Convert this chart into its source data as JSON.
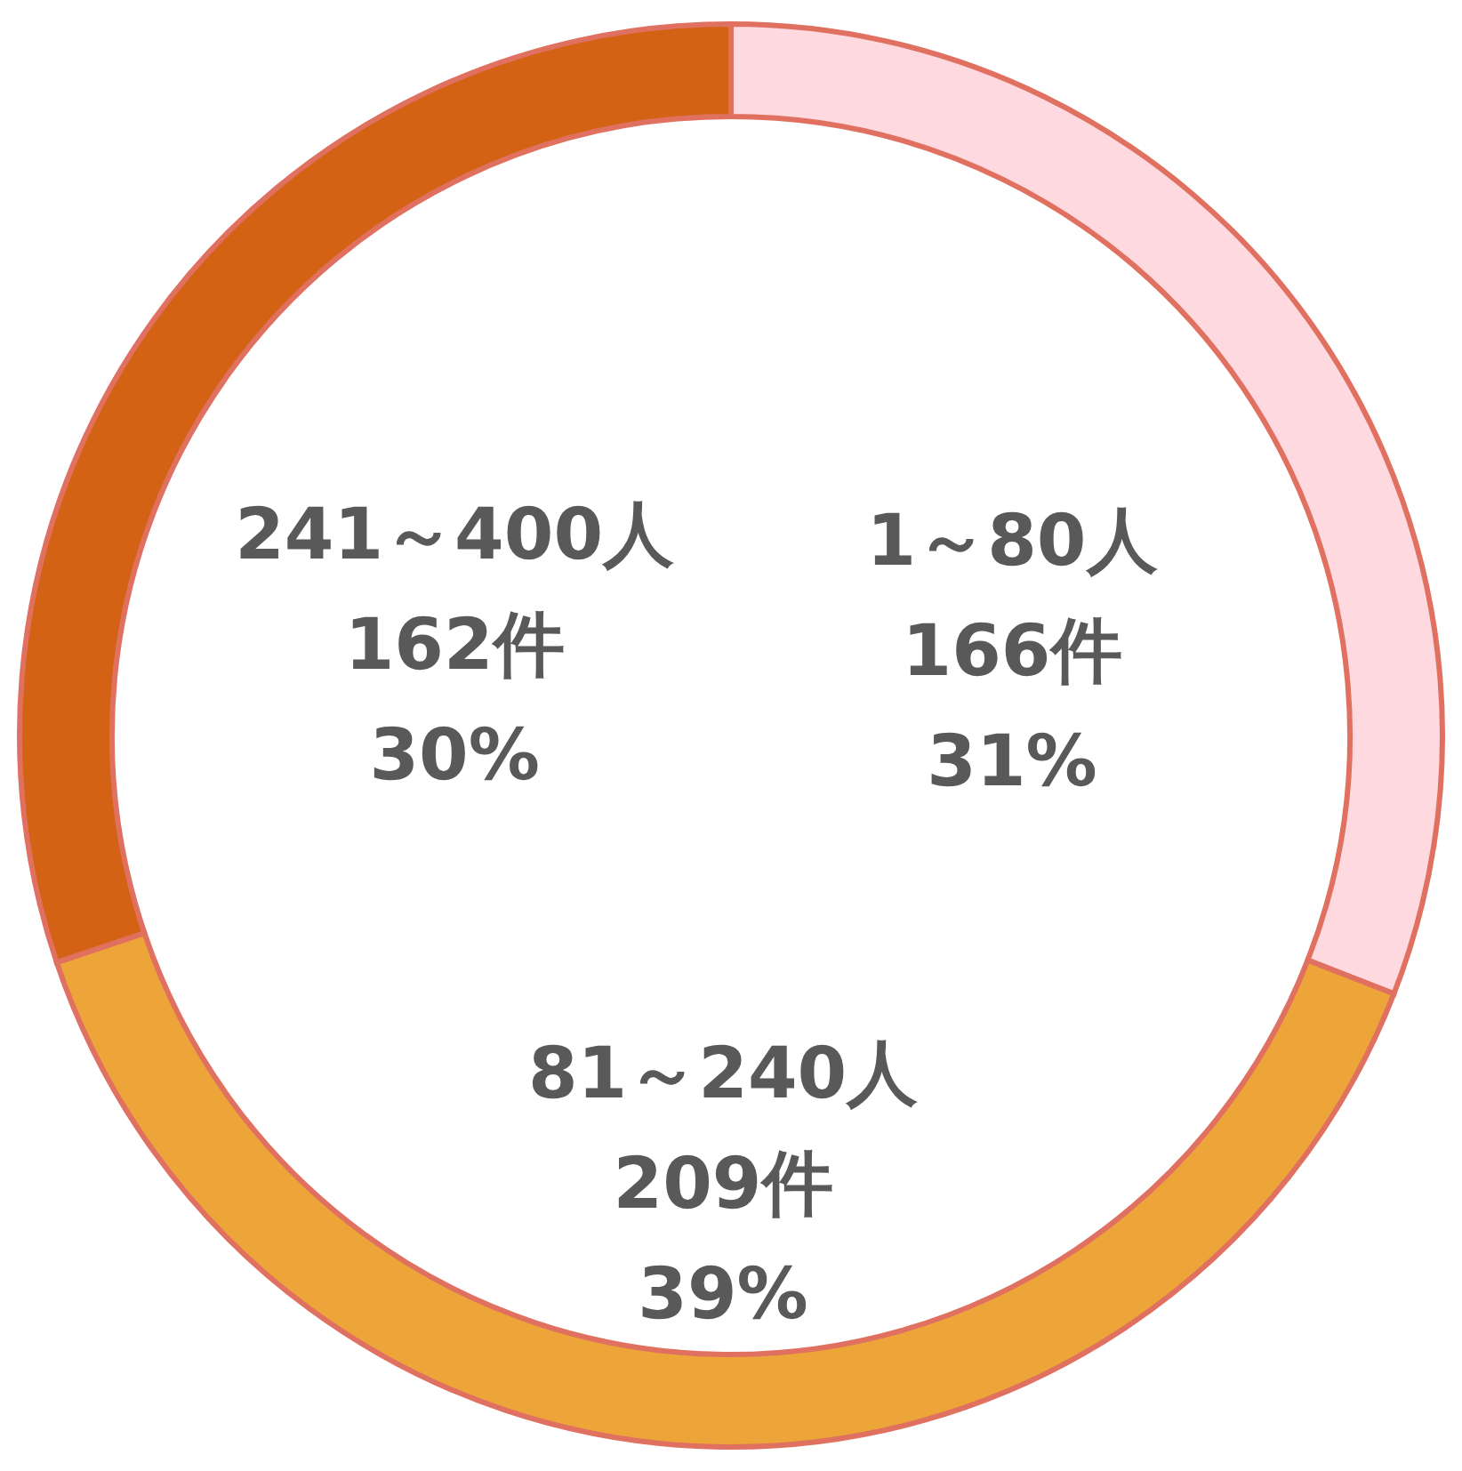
{
  "chart_data": {
    "type": "donut",
    "categories": [
      "1～80人",
      "81～240人",
      "241～400人"
    ],
    "values": [
      166,
      209,
      162
    ],
    "value_labels": [
      "166件\n31%",
      "209件\n39%",
      "162件\n30%"
    ],
    "colors": [
      "#ffd9e0",
      "#eda53a",
      "#d46214"
    ]
  }
}
